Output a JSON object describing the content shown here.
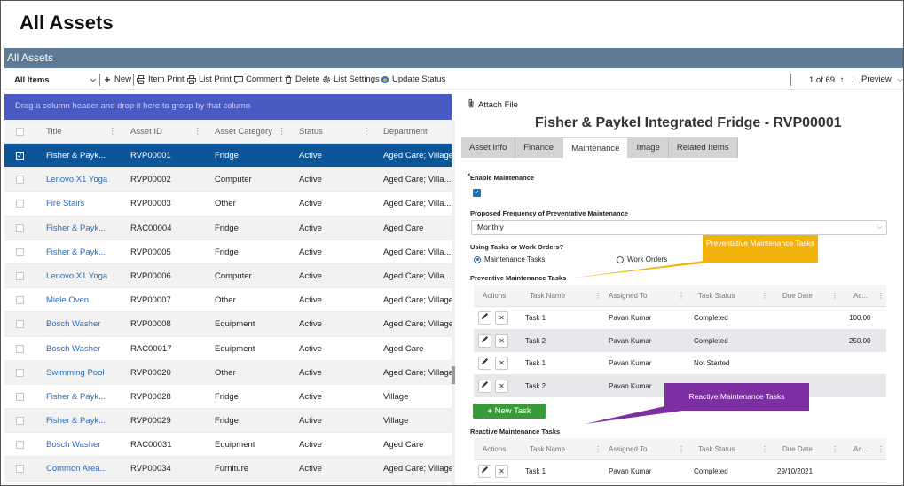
{
  "page": {
    "title": "All Assets"
  },
  "list": {
    "title": "All Assets"
  },
  "toolbar": {
    "view_label": "All Items",
    "new_label": "New",
    "item_print_label": "Item Print",
    "list_print_label": "List Print",
    "comment_label": "Comment",
    "delete_label": "Delete",
    "list_settings_label": "List Settings",
    "update_status_label": "Update Status",
    "pager_label": "1 of 69",
    "preview_label": "Preview"
  },
  "grid": {
    "group_hint": "Drag a column header and drop it here to group by that column",
    "columns": [
      "Title",
      "Asset ID",
      "Asset Category",
      "Status",
      "Department"
    ],
    "rows": [
      {
        "title": "Fisher & Payk...",
        "asset_id": "RVP00001",
        "category": "Fridge",
        "status": "Active",
        "department": "Aged Care; Village",
        "selected": true
      },
      {
        "title": "Lenovo X1 Yoga",
        "asset_id": "RVP00002",
        "category": "Computer",
        "status": "Active",
        "department": "Aged Care; Villa..."
      },
      {
        "title": "Fire Stairs",
        "asset_id": "RVP00003",
        "category": "Other",
        "status": "Active",
        "department": "Aged Care; Villa..."
      },
      {
        "title": "Fisher & Payk...",
        "asset_id": "RAC00004",
        "category": "Fridge",
        "status": "Active",
        "department": "Aged Care"
      },
      {
        "title": "Fisher & Payk...",
        "asset_id": "RVP00005",
        "category": "Fridge",
        "status": "Active",
        "department": "Aged Care; Villa..."
      },
      {
        "title": "Lenovo X1 Yoga",
        "asset_id": "RVP00006",
        "category": "Computer",
        "status": "Active",
        "department": "Aged Care; Villa..."
      },
      {
        "title": "Miele Oven",
        "asset_id": "RVP00007",
        "category": "Other",
        "status": "Active",
        "department": "Aged Care; Village"
      },
      {
        "title": "Bosch Washer",
        "asset_id": "RVP00008",
        "category": "Equipment",
        "status": "Active",
        "department": "Aged Care; Village"
      },
      {
        "title": "Bosch Washer",
        "asset_id": "RAC00017",
        "category": "Equipment",
        "status": "Active",
        "department": "Aged Care"
      },
      {
        "title": "Swimming Pool",
        "asset_id": "RVP00020",
        "category": "Other",
        "status": "Active",
        "department": "Aged Care; Village"
      },
      {
        "title": "Fisher & Payk...",
        "asset_id": "RVP00028",
        "category": "Fridge",
        "status": "Active",
        "department": "Village"
      },
      {
        "title": "Fisher & Payk...",
        "asset_id": "RVP00029",
        "category": "Fridge",
        "status": "Active",
        "department": "Village"
      },
      {
        "title": "Bosch Washer",
        "asset_id": "RAC00031",
        "category": "Equipment",
        "status": "Active",
        "department": "Aged Care"
      },
      {
        "title": "Common Area...",
        "asset_id": "RVP00034",
        "category": "Furniture",
        "status": "Active",
        "department": "Aged Care; Village"
      }
    ]
  },
  "detail": {
    "attach_label": "Attach File",
    "title": "Fisher & Paykel Integrated Fridge - RVP00001",
    "tabs": [
      "Asset Info",
      "Finance",
      "Maintenance",
      "Image",
      "Related Items"
    ],
    "active_tab": "Maintenance",
    "enable_maintenance_label": "Enable Maintenance",
    "enable_maintenance_checked": true,
    "frequency_label": "Proposed Frequency of Preventative Maintenance",
    "frequency_value": "Monthly",
    "mode_label": "Using Tasks or Work Orders?",
    "mode_options": [
      "Maintenance Tasks",
      "Work Orders"
    ],
    "mode_selected": "Maintenance Tasks",
    "preventive": {
      "label": "Preventive Maintenance Tasks",
      "columns": [
        "Actions",
        "Task Name",
        "Assigned To",
        "Task Status",
        "Due Date",
        "Ac..."
      ],
      "rows": [
        {
          "task": "Task 1",
          "assigned": "Pavan Kumar",
          "status": "Completed",
          "due": "",
          "actual": "100.00"
        },
        {
          "task": "Task 2",
          "assigned": "Pavan Kumar",
          "status": "Completed",
          "due": "",
          "actual": "250.00"
        },
        {
          "task": "Task 1",
          "assigned": "Pavan Kumar",
          "status": "Not Started",
          "due": "",
          "actual": ""
        },
        {
          "task": "Task 2",
          "assigned": "Pavan Kumar",
          "status": "",
          "due": "",
          "actual": ""
        }
      ]
    },
    "new_task_label": "New Task",
    "reactive": {
      "label": "Reactive Maintenance Tasks",
      "columns": [
        "Actions",
        "Task Name",
        "Assigned To",
        "Task Status",
        "Due Date",
        "Ac..."
      ],
      "rows": [
        {
          "task": "Task 1",
          "assigned": "Pavan Kumar",
          "status": "Completed",
          "due": "29/10/2021",
          "actual": ""
        }
      ]
    }
  },
  "callouts": {
    "preventative": "Preventative Maintenance Tasks",
    "reactive": "Reactive Maintenance Tasks"
  },
  "colors": {
    "header_bar": "#5f7a95",
    "group_bar": "#4a5ac4",
    "selected_row": "#0c5599",
    "link": "#2b6cb8",
    "new_task_button": "#3a9a3a",
    "callout_orange": "#f3b20a",
    "callout_purple": "#7b2fa0"
  }
}
